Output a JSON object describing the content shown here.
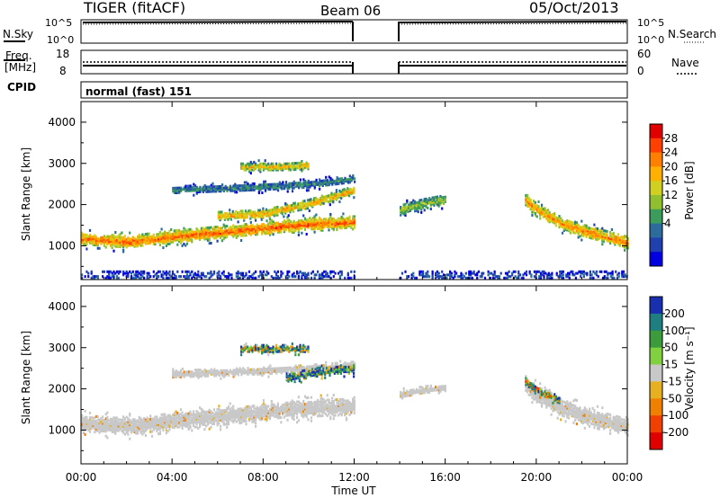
{
  "header": {
    "radar": "TIGER (fitACF)",
    "beam": "Beam 06",
    "date": "05/Oct/2013"
  },
  "noise_panel": {
    "left_label": "N.Sky",
    "left_ticks": [
      "10^5",
      "10^0"
    ],
    "right_label": "N.Search",
    "right_ticks": [
      "10^5",
      "10^0"
    ]
  },
  "freq_panel": {
    "left_label_1": "Freq.",
    "left_label_2": "[MHz]",
    "left_ticks": [
      "18",
      "8"
    ],
    "right_label": "Nave",
    "right_ticks": [
      "60",
      "0"
    ]
  },
  "cpid_panel": {
    "label": "CPID",
    "text": "normal (fast) 151"
  },
  "colorbars": {
    "power": {
      "label": "Power [dB]",
      "ticks": [
        "28",
        "24",
        "20",
        "16",
        "12",
        "8",
        "4"
      ],
      "colors": [
        "#e00000",
        "#ff4000",
        "#ff8000",
        "#ffb000",
        "#d0d020",
        "#90c030",
        "#3c9c5c",
        "#2c6c9c",
        "#2040b0",
        "#0000e0"
      ]
    },
    "velocity": {
      "label": "Velocity [m s⁻¹]",
      "ticks": [
        "200",
        "100",
        "50",
        "15",
        "-15",
        "-50",
        "-100",
        "-200"
      ],
      "colors": [
        "#1830b0",
        "#1f7f80",
        "#3c9c3c",
        "#80d040",
        "#c8c8c8",
        "#e6b020",
        "#f08000",
        "#f04000",
        "#e00000"
      ]
    }
  },
  "x_axis": {
    "label": "Time UT",
    "ticks": [
      "00:00",
      "04:00",
      "08:00",
      "12:00",
      "16:00",
      "20:00",
      "00:00"
    ]
  },
  "chart_data": [
    {
      "type": "heatmap",
      "title": "Power [dB]",
      "xlabel": "Time UT",
      "ylabel": "Slant Range [km]",
      "xlim": [
        0,
        24
      ],
      "ylim": [
        180,
        4500
      ],
      "yticks": [
        1000,
        2000,
        3000,
        4000
      ],
      "zlim": [
        0,
        32
      ],
      "data_gap_hours": [
        12.0,
        14.0
      ],
      "bands": [
        {
          "name": "main backscatter (00-12 UT)",
          "x": [
            0,
            2,
            4,
            6,
            8,
            10,
            12
          ],
          "y_center": [
            1200,
            1120,
            1250,
            1350,
            1450,
            1560,
            1600
          ],
          "half_width_km": 170,
          "peak_power_db": 26
        },
        {
          "name": "upper band (06-12 UT)",
          "x": [
            6,
            8,
            10,
            12
          ],
          "y_center": [
            1750,
            1800,
            2050,
            2380
          ],
          "half_width_km": 120,
          "peak_power_db": 22
        },
        {
          "name": "2500 km band",
          "x": [
            4,
            6,
            8,
            10,
            12
          ],
          "y_center": [
            2380,
            2420,
            2460,
            2520,
            2650
          ],
          "half_width_km": 100,
          "peak_power_db": 10
        },
        {
          "name": "3000 km patch",
          "x": [
            7,
            8,
            9,
            10
          ],
          "y_center": [
            2950,
            2950,
            2950,
            2980
          ],
          "half_width_km": 110,
          "peak_power_db": 20
        },
        {
          "name": "post-gap 2000 km",
          "x": [
            14,
            15,
            16
          ],
          "y_center": [
            1900,
            2050,
            2150
          ],
          "half_width_km": 140,
          "peak_power_db": 16
        },
        {
          "name": "evening band (20-24 UT)",
          "x": [
            19.5,
            20,
            21,
            22,
            23,
            24
          ],
          "y_center": [
            2150,
            1900,
            1600,
            1400,
            1250,
            1100
          ],
          "half_width_km": 170,
          "peak_power_db": 24
        },
        {
          "name": "near-range noise",
          "x": [
            0,
            24
          ],
          "y_center": [
            300,
            300
          ],
          "half_width_km": 90,
          "peak_power_db": 6
        }
      ]
    },
    {
      "type": "heatmap",
      "title": "Velocity [m s⁻¹]",
      "xlabel": "Time UT",
      "ylabel": "Slant Range [km]",
      "xlim": [
        0,
        24
      ],
      "ylim": [
        180,
        4500
      ],
      "yticks": [
        1000,
        2000,
        3000,
        4000
      ],
      "zlim": [
        -250,
        250
      ],
      "data_gap_hours": [
        12.0,
        14.0
      ],
      "bands": [
        {
          "name": "main backscatter (ground scatter)",
          "x": [
            0,
            2,
            4,
            6,
            8,
            10,
            12
          ],
          "y_center": [
            1200,
            1120,
            1250,
            1350,
            1450,
            1560,
            1600
          ],
          "half_width_km": 220,
          "velocity": 0
        },
        {
          "name": "2400 km grey band",
          "x": [
            4,
            6,
            8,
            10,
            12
          ],
          "y_center": [
            2380,
            2420,
            2460,
            2520,
            2600
          ],
          "half_width_km": 100,
          "velocity": 0
        },
        {
          "name": "3000 km patch",
          "x": [
            7,
            8,
            9,
            10
          ],
          "y_center": [
            3000,
            3000,
            3000,
            3000
          ],
          "half_width_km": 100,
          "velocity": 60
        },
        {
          "name": "2400 km mixed",
          "x": [
            9,
            10,
            11,
            12
          ],
          "y_center": [
            2300,
            2400,
            2500,
            2500
          ],
          "half_width_km": 120,
          "velocity": 80
        },
        {
          "name": "post-gap 2000 km",
          "x": [
            14,
            15,
            16
          ],
          "y_center": [
            1900,
            2000,
            2050
          ],
          "half_width_km": 100,
          "velocity": 0
        },
        {
          "name": "evening band",
          "x": [
            19.5,
            20,
            21,
            22,
            23,
            24
          ],
          "y_center": [
            2150,
            1900,
            1600,
            1400,
            1250,
            1100
          ],
          "half_width_km": 220,
          "velocity": 0
        },
        {
          "name": "evening leading edge",
          "x": [
            19.5,
            20,
            21
          ],
          "y_center": [
            2200,
            2000,
            1750
          ],
          "half_width_km": 100,
          "velocity": 40
        }
      ]
    }
  ]
}
